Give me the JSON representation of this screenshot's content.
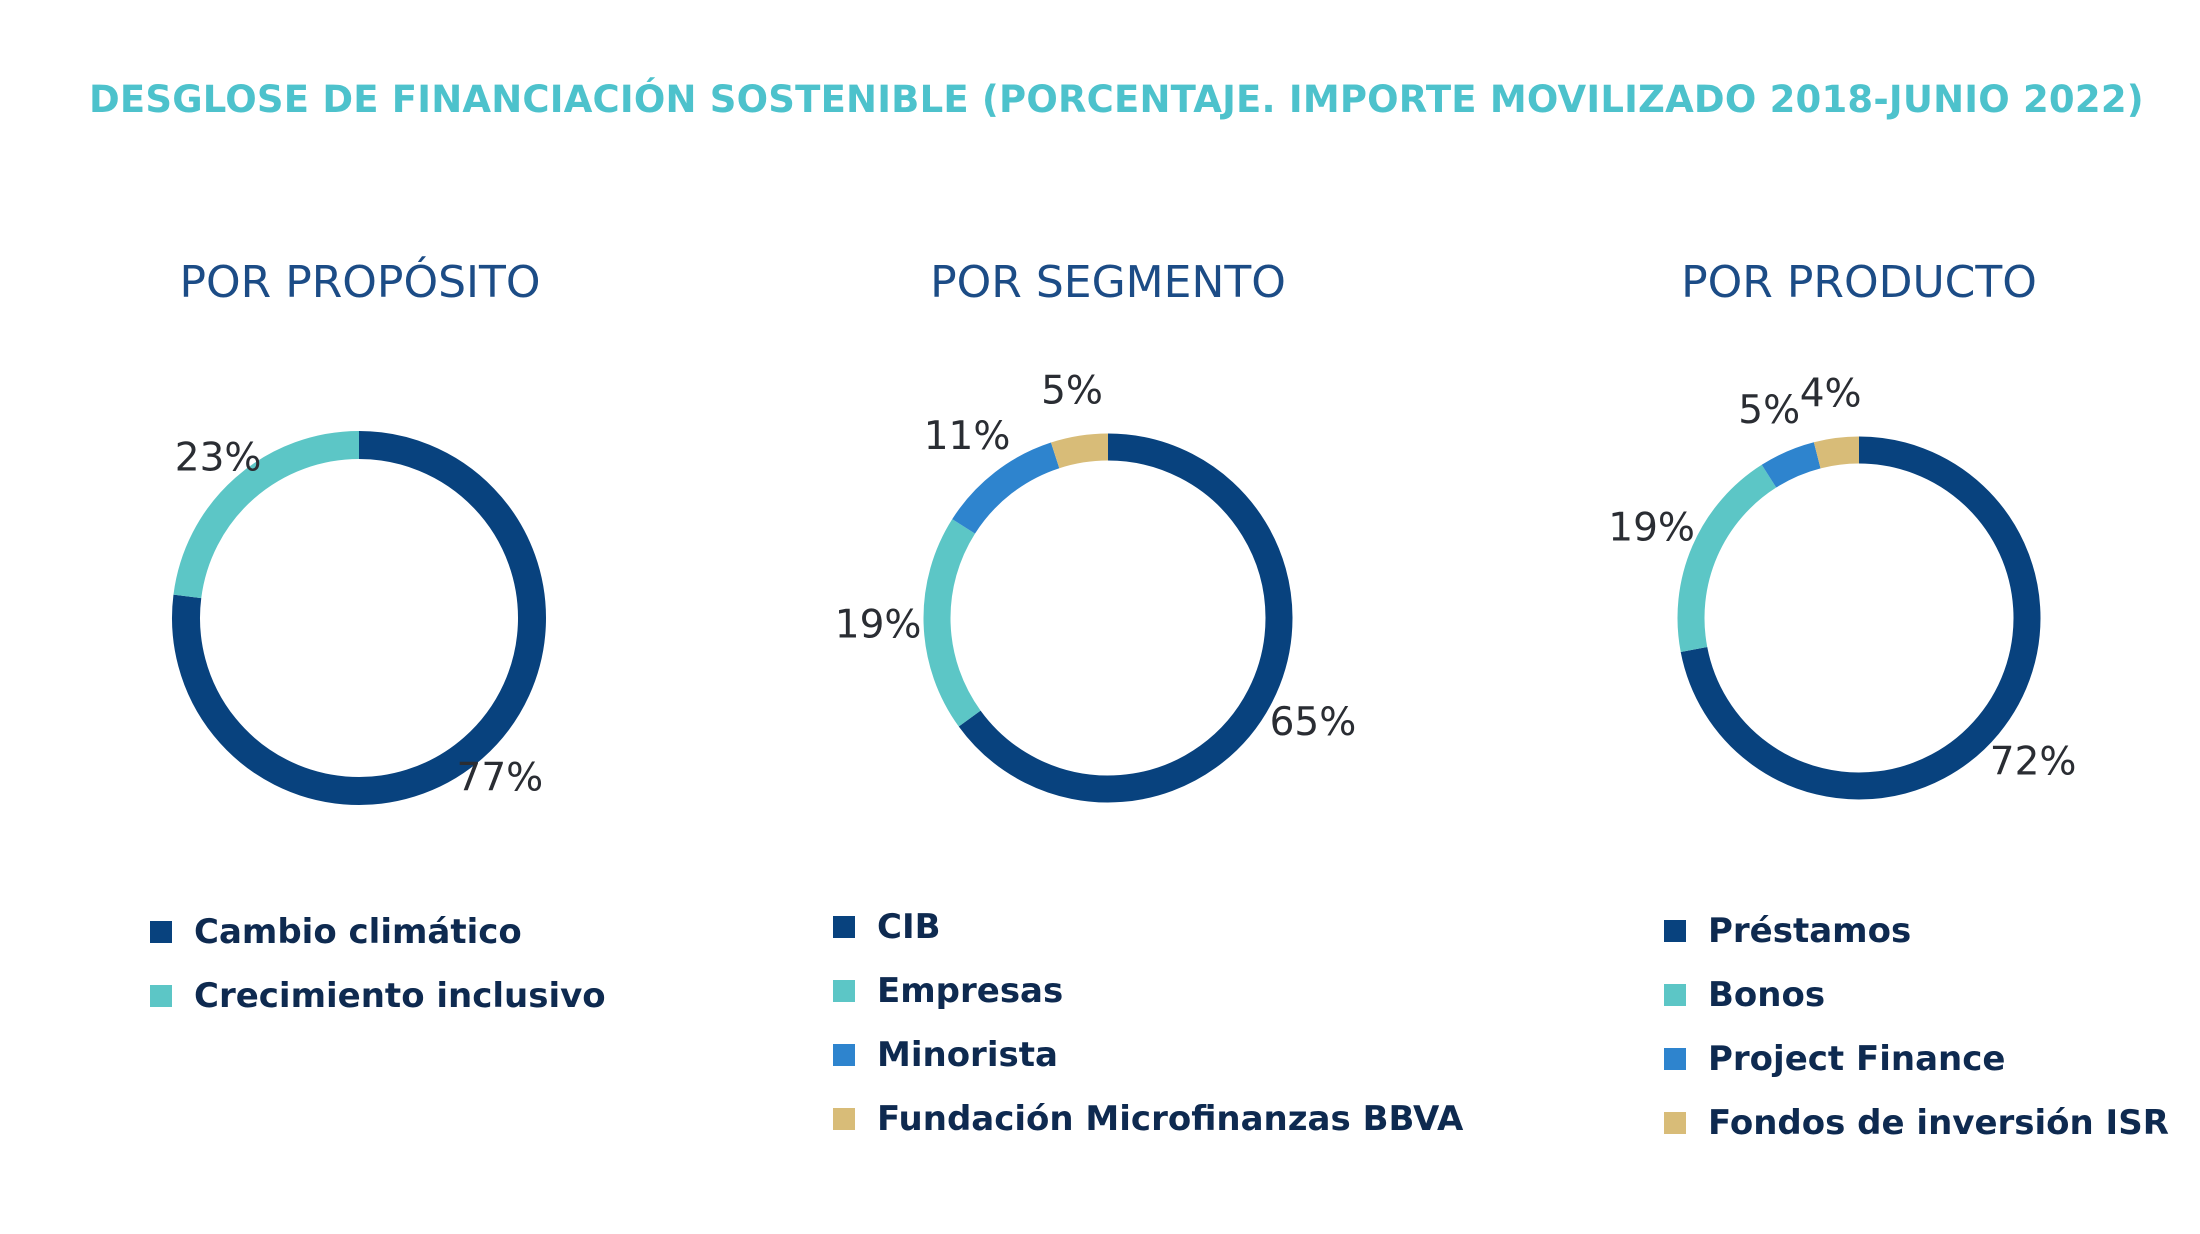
{
  "title": "DESGLOSE DE FINANCIACIÓN SOSTENIBLE (PORCENTAJE. IMPORTE MOVILIZADO 2018-JUNIO 2022)",
  "colors": {
    "title": "#4DC2CC",
    "panel_title": "#1C4C86",
    "navy": "#08427E",
    "teal": "#5CC6C6",
    "blue": "#2E84CE",
    "gold": "#D8BC78"
  },
  "chart_data": [
    {
      "type": "pie",
      "variant": "donut",
      "title": "POR PROPÓSITO",
      "categories": [
        "Cambio climático",
        "Crecimiento inclusivo"
      ],
      "values": [
        77,
        23
      ],
      "labels": [
        "77%",
        "23%"
      ],
      "colors": [
        "#08427E",
        "#5CC6C6"
      ],
      "legend_position": "bottom"
    },
    {
      "type": "pie",
      "variant": "donut",
      "title": "POR SEGMENTO",
      "categories": [
        "CIB",
        "Empresas",
        "Minorista",
        "Fundación Microfinanzas BBVA"
      ],
      "values": [
        65,
        19,
        11,
        5
      ],
      "labels": [
        "65%",
        "19%",
        "11%",
        "5%"
      ],
      "colors": [
        "#08427E",
        "#5CC6C6",
        "#2E84CE",
        "#D8BC78"
      ],
      "legend_position": "bottom"
    },
    {
      "type": "pie",
      "variant": "donut",
      "title": "POR PRODUCTO",
      "categories": [
        "Préstamos",
        "Bonos",
        "Project Finance",
        "Fondos de inversión ISR"
      ],
      "values": [
        72,
        19,
        5,
        4
      ],
      "labels": [
        "72%",
        "19%",
        "5%",
        "4%"
      ],
      "colors": [
        "#08427E",
        "#5CC6C6",
        "#2E84CE",
        "#D8BC78"
      ],
      "legend_position": "bottom"
    }
  ]
}
